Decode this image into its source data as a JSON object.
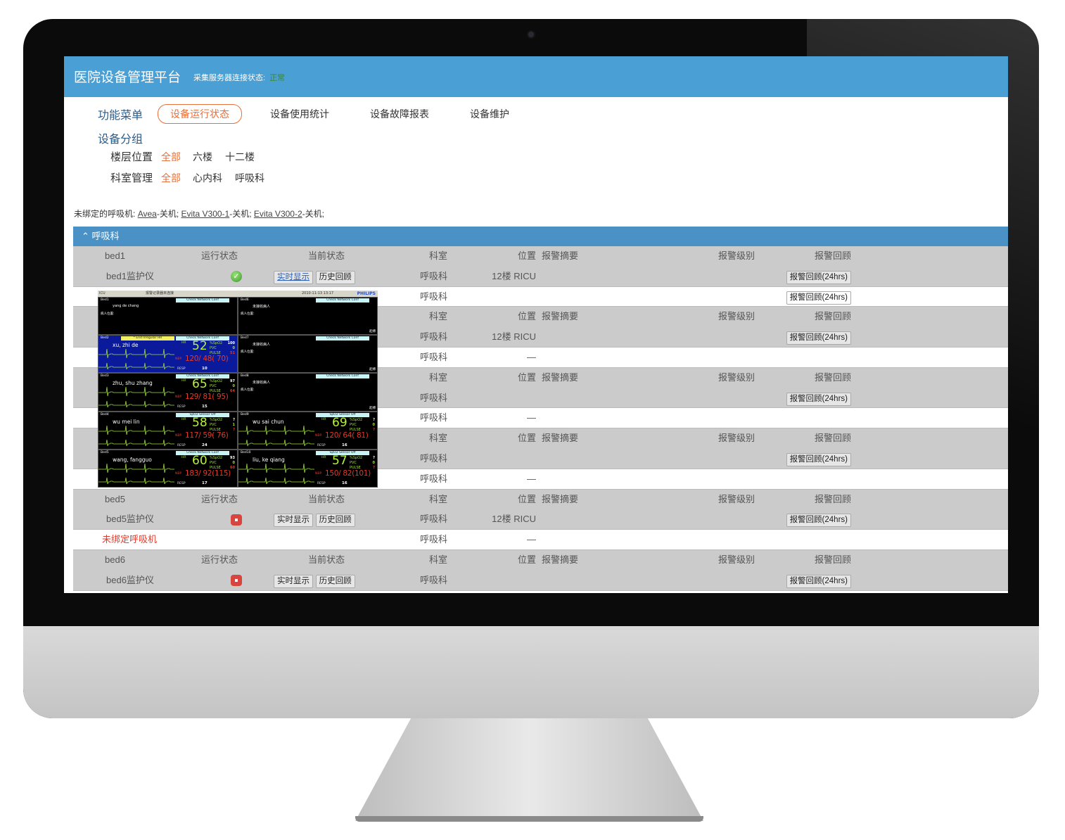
{
  "app": {
    "title": "医院设备管理平台",
    "connection_label": "采集服务器连接状态:",
    "connection_status": "正常",
    "connection_color": "#3c8a2a",
    "header_color": "#4a9fd4",
    "accent_color": "#e8703a"
  },
  "nav": {
    "menu_label": "功能菜单",
    "items": [
      {
        "label": "设备运行状态",
        "active": true
      },
      {
        "label": "设备使用统计"
      },
      {
        "label": "设备故障报表"
      },
      {
        "label": "设备维护"
      }
    ]
  },
  "groups_filter": {
    "label": "设备分组",
    "floor": {
      "label": "楼层位置",
      "options": [
        "全部",
        "六楼",
        "十二楼"
      ],
      "selected": "全部"
    },
    "dept": {
      "label": "科室管理",
      "options": [
        "全部",
        "心内科",
        "呼吸科"
      ],
      "selected": "全部"
    }
  },
  "unbound": {
    "label": "未绑定的呼吸机:",
    "items": [
      {
        "name": "Avea",
        "state": "-关机;"
      },
      {
        "name": "Evita V300-1",
        "state": "-关机;"
      },
      {
        "name": "Evita V300-2",
        "state": "-关机;"
      }
    ]
  },
  "section": {
    "title": "呼吸科",
    "icon": "chevron-up-icon"
  },
  "table": {
    "headers": {
      "status": "运行状态",
      "current": "当前状态",
      "dept": "科室",
      "location": "位置",
      "summary": "报警摘要",
      "level": "报警级别",
      "review": "报警回顾"
    },
    "buttons": {
      "realtime": "实时显示",
      "history": "历史回顾",
      "review": "报警回顾(24hrs)"
    },
    "groups": [
      {
        "name": "bed1",
        "device": "bed1监护仪",
        "status": "ok",
        "dept": "呼吸科",
        "location": "12楼 RICU",
        "review": true,
        "vent": {
          "label": "",
          "dept": "呼吸科",
          "location": "",
          "review": true
        }
      },
      {
        "name": "",
        "device": "",
        "status": "",
        "dept": "呼吸科",
        "location": "12楼 RICU",
        "review": true,
        "vent": {
          "label": "",
          "dept": "呼吸科",
          "location": "—",
          "review": false
        }
      },
      {
        "name": "",
        "device": "",
        "status": "",
        "dept": "呼吸科",
        "location": "",
        "review": true,
        "vent": {
          "label": "",
          "dept": "呼吸科",
          "location": "—",
          "review": false
        }
      },
      {
        "name": "",
        "device": "",
        "status": "",
        "dept": "呼吸科",
        "location": "",
        "review": true,
        "vent": {
          "label": "",
          "dept": "呼吸科",
          "location": "—",
          "review": false
        }
      },
      {
        "name": "bed5",
        "device": "bed5监护仪",
        "status": "stopped",
        "dept": "呼吸科",
        "location": "12楼 RICU",
        "review": true,
        "vent": {
          "label": "未绑定呼吸机",
          "dept": "呼吸科",
          "location": "—",
          "review": false
        }
      },
      {
        "name": "bed6",
        "device": "bed6监护仪",
        "status": "stopped",
        "dept": "呼吸科",
        "location": "",
        "review": true,
        "vent": null
      }
    ]
  },
  "monitor_wall": {
    "unit": "ICU",
    "recorder": "报警记录器未连接",
    "datetime": "2010-11-13 13:17",
    "brand": "PHILIPS",
    "labels": {
      "hr": "HR",
      "spo2": "%SpO2",
      "pvc": "PVC",
      "pulse": "PULSE",
      "nbp": "NBP",
      "resp": "RESP"
    },
    "beds": [
      {
        "bed": "Bed1",
        "alert": "Check Network Conf",
        "name": "yang de chang",
        "location": "病人位置:"
      },
      {
        "bed": "Bed2",
        "alert": "Check Network Conf",
        "yellow": "* End Irregular HR",
        "name": "xu, zhi de",
        "hr": "52",
        "spo2": "100",
        "pvc": "0",
        "pulse": "51",
        "nbp": "120/ 48( 70)",
        "resp": "10",
        "highlight": true
      },
      {
        "bed": "Bed3",
        "alert": "Check Network Conf",
        "name": "zhu, shu zhang",
        "hr": "65",
        "spo2": "97",
        "pvc": "0",
        "pulse": "64",
        "nbp": "129/ 81( 95)",
        "resp": "15"
      },
      {
        "bed": "Bed4",
        "alert": "SpO2  Sensor Off",
        "name": "wu mei lin",
        "hr": "58",
        "spo2": "?",
        "pvc": "1",
        "pulse": "?",
        "nbp": "117/ 59( 76)",
        "resp": "24"
      },
      {
        "bed": "Bed5",
        "alert": "Check Network Conf",
        "name": "wang, fangguo",
        "hr": "60",
        "spo2": "93",
        "pvc": "0",
        "pulse": "60",
        "nbp": "183/ 92(115)",
        "resp": "17"
      },
      {
        "bed": "Bed6",
        "alert": "Check Network Conf",
        "name": "未接收病人",
        "location": "病人位置:",
        "footer": "起搏"
      },
      {
        "bed": "Bed7",
        "alert": "Check Network Conf",
        "name": "未接收病人",
        "location": "病人位置:",
        "footer": "起搏"
      },
      {
        "bed": "Bed8",
        "alert": "Check Network Conf",
        "name": "未接收病人",
        "location": "病人位置:",
        "footer": "起搏"
      },
      {
        "bed": "Bed9",
        "alert": "SpO2  Sensor Off",
        "name": "wu sai chun",
        "hr": "69",
        "spo2": "?",
        "pvc": "0",
        "pulse": "?",
        "nbp": "120/ 64( 81)",
        "resp": "16"
      },
      {
        "bed": "Bed10",
        "alert": "SpO2  Sensor Off",
        "name": "liu, ke qiang",
        "hr": "57",
        "spo2": "?",
        "pvc": "0",
        "pulse": "?",
        "nbp": "150/ 82(101)",
        "resp": "16"
      }
    ]
  }
}
